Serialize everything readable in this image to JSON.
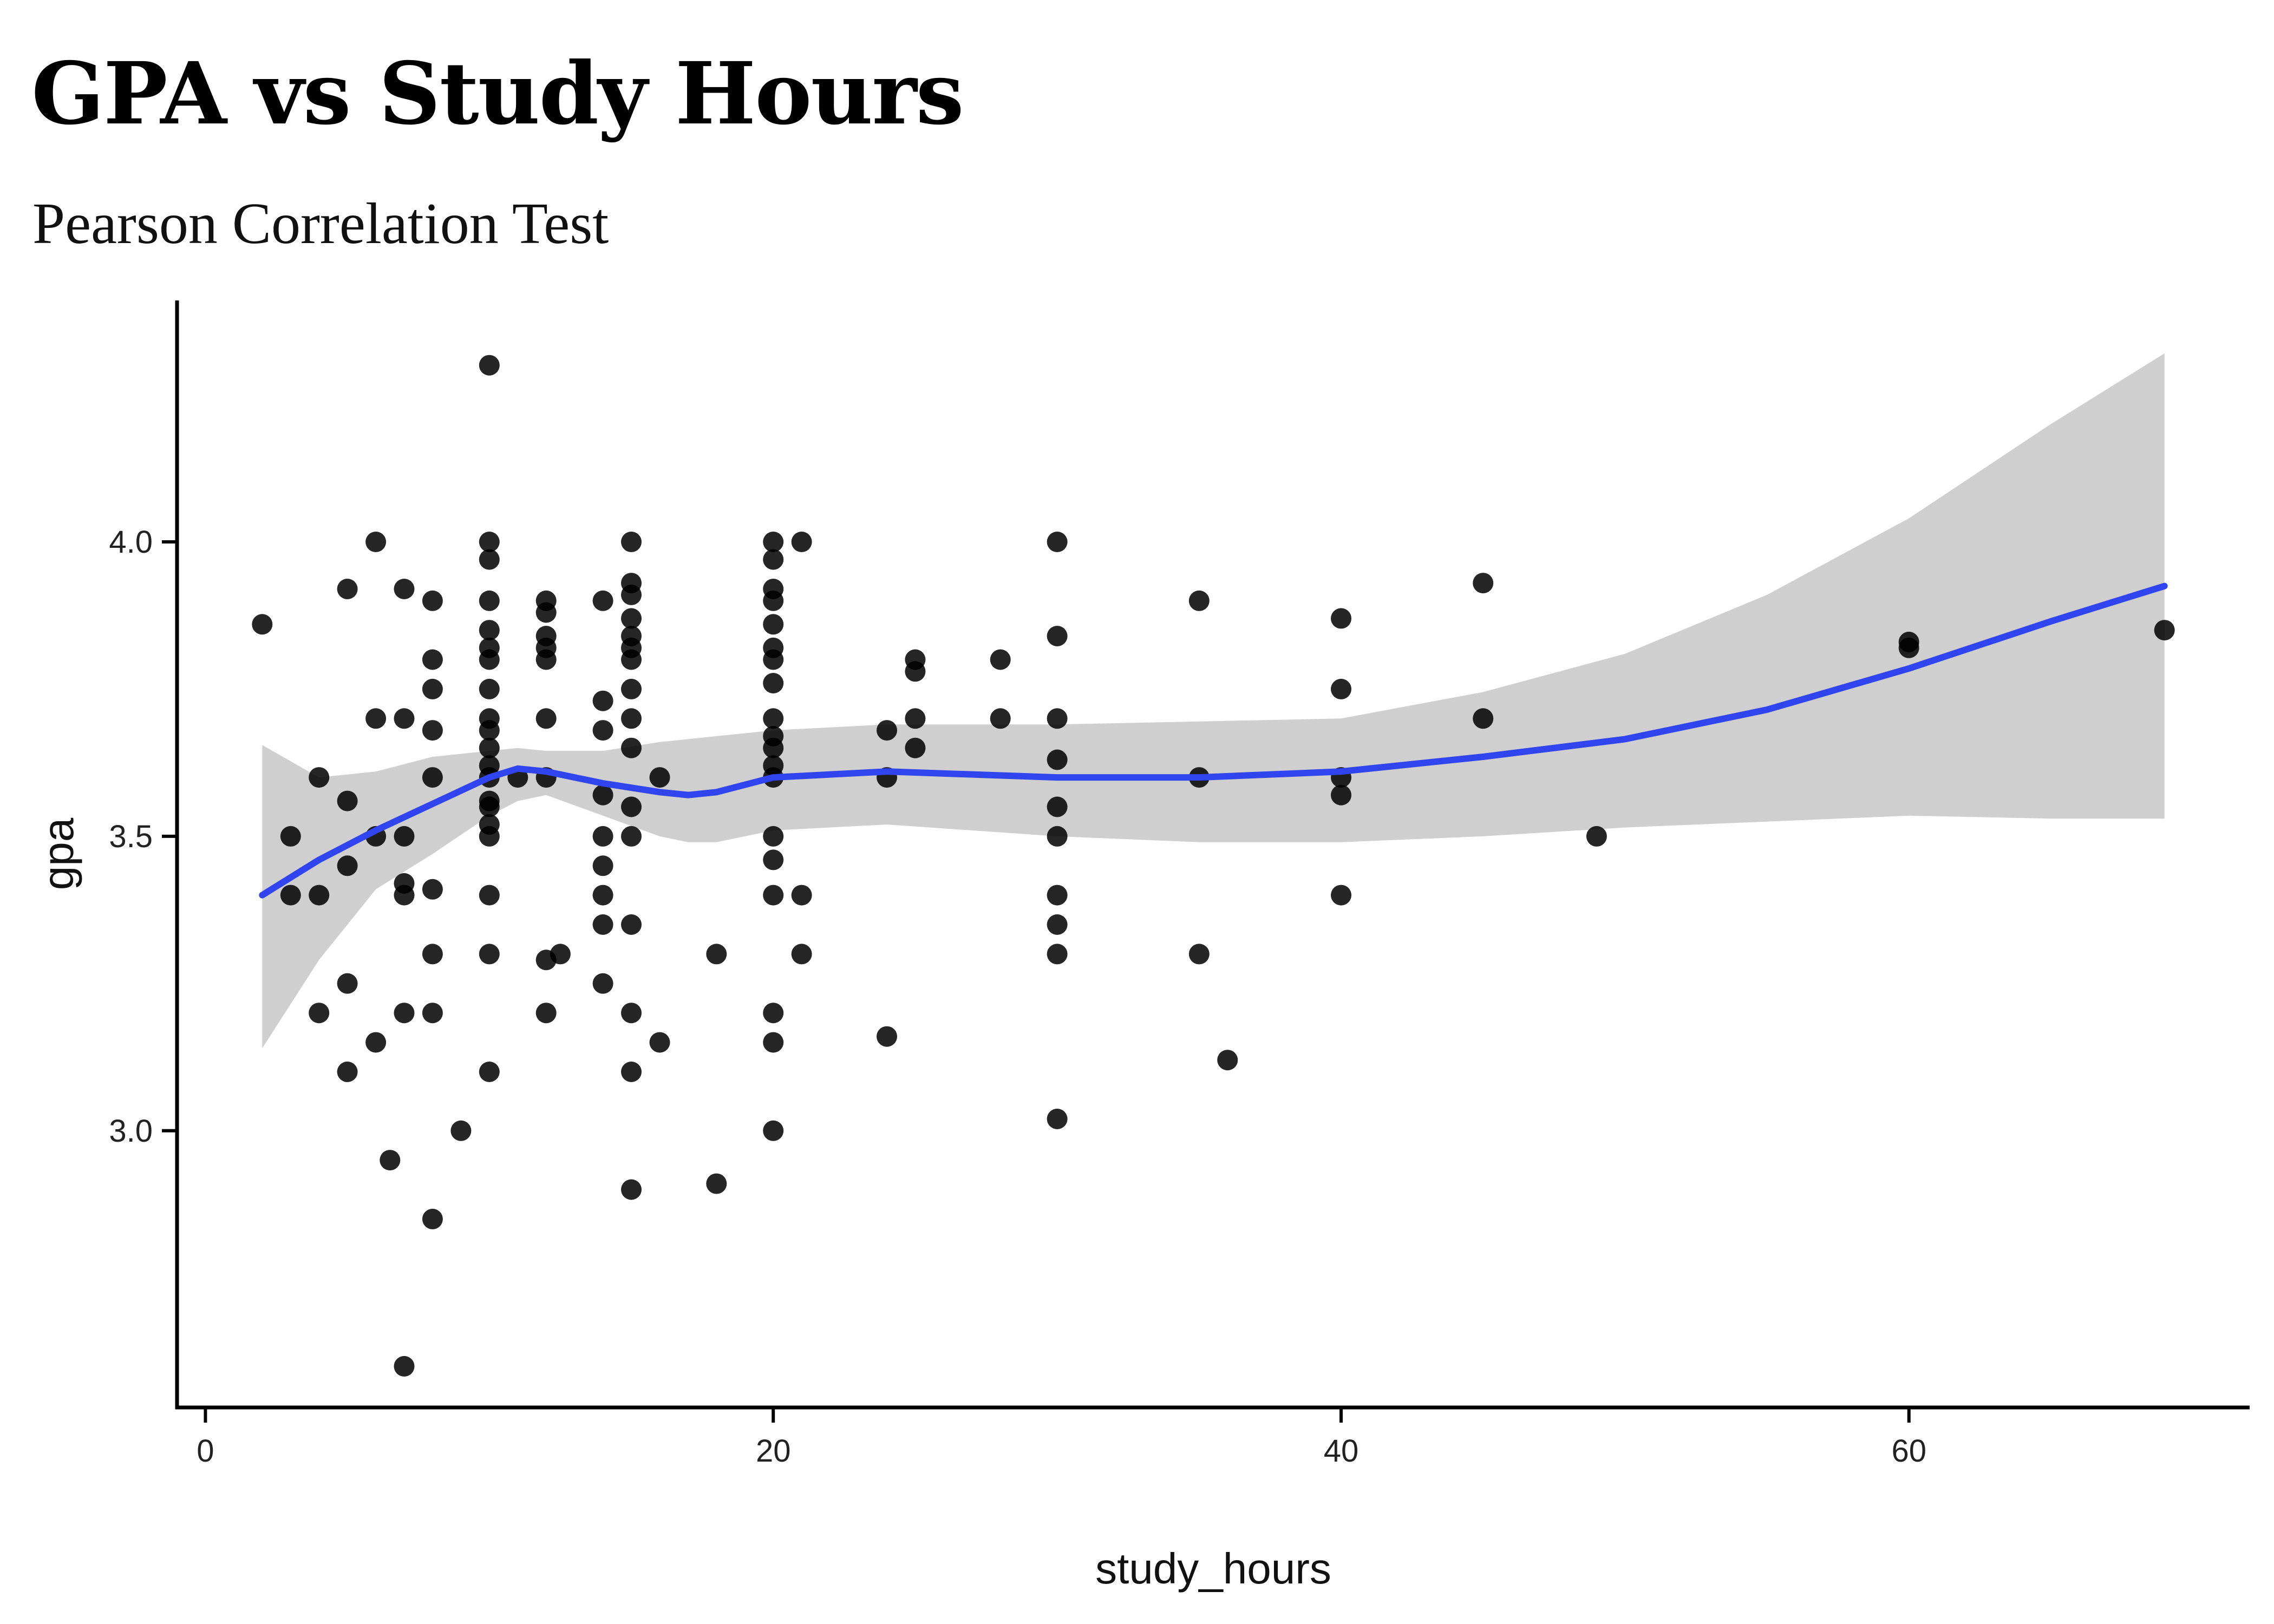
{
  "chart_data": {
    "type": "scatter",
    "title": "GPA vs Study Hours",
    "subtitle": "Pearson Correlation Test",
    "xlabel": "study_hours",
    "ylabel": "gpa",
    "xlim": [
      -1,
      72
    ],
    "ylim": [
      2.53,
      4.41
    ],
    "x_ticks": [
      0,
      20,
      40,
      60
    ],
    "x_tick_labels": [
      "0",
      "20",
      "40",
      "60"
    ],
    "y_ticks": [
      3.0,
      3.5,
      4.0
    ],
    "y_tick_labels": [
      "3.0",
      "3.5",
      "4.0"
    ],
    "grid": false,
    "legend": "none",
    "colors": {
      "points": "#000000",
      "smooth_line": "#3045f0",
      "confidence_band": "#cfcfcf",
      "axis": "#000000"
    },
    "points": [
      [
        2,
        3.86
      ],
      [
        3,
        3.5
      ],
      [
        3,
        3.4
      ],
      [
        4,
        3.6
      ],
      [
        4,
        3.4
      ],
      [
        4,
        3.2
      ],
      [
        5,
        3.92
      ],
      [
        5,
        3.56
      ],
      [
        5,
        3.45
      ],
      [
        5,
        3.25
      ],
      [
        5,
        3.1
      ],
      [
        6,
        4.0
      ],
      [
        6,
        3.7
      ],
      [
        6,
        3.5
      ],
      [
        6,
        3.15
      ],
      [
        6.5,
        2.95
      ],
      [
        7,
        3.92
      ],
      [
        7,
        3.7
      ],
      [
        7,
        3.5
      ],
      [
        7,
        3.42
      ],
      [
        7,
        3.4
      ],
      [
        7,
        3.2
      ],
      [
        7,
        2.6
      ],
      [
        8,
        3.9
      ],
      [
        8,
        3.8
      ],
      [
        8,
        3.75
      ],
      [
        8,
        3.68
      ],
      [
        8,
        3.6
      ],
      [
        8,
        3.41
      ],
      [
        8,
        3.3
      ],
      [
        8,
        3.2
      ],
      [
        8,
        2.85
      ],
      [
        9,
        3.0
      ],
      [
        10,
        4.3
      ],
      [
        10,
        4.0
      ],
      [
        10,
        3.97
      ],
      [
        10,
        3.9
      ],
      [
        10,
        3.85
      ],
      [
        10,
        3.82
      ],
      [
        10,
        3.8
      ],
      [
        10,
        3.75
      ],
      [
        10,
        3.7
      ],
      [
        10,
        3.68
      ],
      [
        10,
        3.65
      ],
      [
        10,
        3.62
      ],
      [
        10,
        3.6
      ],
      [
        10,
        3.56
      ],
      [
        10,
        3.55
      ],
      [
        10,
        3.52
      ],
      [
        10,
        3.5
      ],
      [
        10,
        3.4
      ],
      [
        10,
        3.3
      ],
      [
        10,
        3.1
      ],
      [
        11,
        3.6
      ],
      [
        12,
        3.9
      ],
      [
        12,
        3.88
      ],
      [
        12,
        3.84
      ],
      [
        12,
        3.82
      ],
      [
        12,
        3.8
      ],
      [
        12,
        3.7
      ],
      [
        12,
        3.6
      ],
      [
        12,
        3.29
      ],
      [
        12,
        3.2
      ],
      [
        12.5,
        3.3
      ],
      [
        14,
        3.9
      ],
      [
        14,
        3.73
      ],
      [
        14,
        3.68
      ],
      [
        14,
        3.57
      ],
      [
        14,
        3.5
      ],
      [
        14,
        3.45
      ],
      [
        14,
        3.4
      ],
      [
        14,
        3.35
      ],
      [
        14,
        3.25
      ],
      [
        15,
        4.0
      ],
      [
        15,
        3.93
      ],
      [
        15,
        3.91
      ],
      [
        15,
        3.87
      ],
      [
        15,
        3.84
      ],
      [
        15,
        3.82
      ],
      [
        15,
        3.8
      ],
      [
        15,
        3.75
      ],
      [
        15,
        3.7
      ],
      [
        15,
        3.65
      ],
      [
        15,
        3.55
      ],
      [
        15,
        3.5
      ],
      [
        15,
        3.35
      ],
      [
        15,
        3.2
      ],
      [
        15,
        3.1
      ],
      [
        15,
        2.9
      ],
      [
        16,
        3.6
      ],
      [
        16,
        3.15
      ],
      [
        18,
        3.3
      ],
      [
        18,
        2.91
      ],
      [
        20,
        4.0
      ],
      [
        20,
        3.97
      ],
      [
        20,
        3.92
      ],
      [
        20,
        3.9
      ],
      [
        20,
        3.86
      ],
      [
        20,
        3.82
      ],
      [
        20,
        3.8
      ],
      [
        20,
        3.76
      ],
      [
        20,
        3.7
      ],
      [
        20,
        3.67
      ],
      [
        20,
        3.65
      ],
      [
        20,
        3.62
      ],
      [
        20,
        3.6
      ],
      [
        20,
        3.5
      ],
      [
        20,
        3.46
      ],
      [
        20,
        3.4
      ],
      [
        20,
        3.2
      ],
      [
        20,
        3.15
      ],
      [
        20,
        3.0
      ],
      [
        21,
        4.0
      ],
      [
        21,
        3.4
      ],
      [
        21,
        3.3
      ],
      [
        24,
        3.68
      ],
      [
        24,
        3.6
      ],
      [
        24,
        3.16
      ],
      [
        25,
        3.8
      ],
      [
        25,
        3.78
      ],
      [
        25,
        3.7
      ],
      [
        25,
        3.65
      ],
      [
        28,
        3.8
      ],
      [
        28,
        3.7
      ],
      [
        30,
        4.0
      ],
      [
        30,
        3.84
      ],
      [
        30,
        3.7
      ],
      [
        30,
        3.63
      ],
      [
        30,
        3.55
      ],
      [
        30,
        3.5
      ],
      [
        30,
        3.4
      ],
      [
        30,
        3.35
      ],
      [
        30,
        3.3
      ],
      [
        30,
        3.02
      ],
      [
        35,
        3.9
      ],
      [
        35,
        3.6
      ],
      [
        35,
        3.3
      ],
      [
        36,
        3.12
      ],
      [
        40,
        3.87
      ],
      [
        40,
        3.75
      ],
      [
        40,
        3.6
      ],
      [
        40,
        3.57
      ],
      [
        40,
        3.4
      ],
      [
        45,
        3.93
      ],
      [
        45,
        3.7
      ],
      [
        49,
        3.5
      ],
      [
        60,
        3.83
      ],
      [
        60,
        3.82
      ],
      [
        69,
        3.85
      ]
    ],
    "smooth_fit": {
      "method": "loess",
      "x": [
        2,
        4,
        6,
        8,
        10,
        11,
        12,
        14,
        16,
        17,
        18,
        20,
        24,
        30,
        35,
        40,
        45,
        50,
        55,
        60,
        65,
        69
      ],
      "y": [
        3.4,
        3.46,
        3.51,
        3.555,
        3.6,
        3.615,
        3.61,
        3.59,
        3.575,
        3.57,
        3.575,
        3.6,
        3.61,
        3.6,
        3.6,
        3.61,
        3.635,
        3.665,
        3.715,
        3.785,
        3.865,
        3.925
      ],
      "ci_upper": [
        3.655,
        3.6,
        3.61,
        3.635,
        3.645,
        3.65,
        3.645,
        3.645,
        3.66,
        3.665,
        3.67,
        3.68,
        3.69,
        3.69,
        3.695,
        3.7,
        3.745,
        3.81,
        3.91,
        4.04,
        4.2,
        4.32
      ],
      "ci_lower": [
        3.14,
        3.29,
        3.41,
        3.47,
        3.535,
        3.56,
        3.57,
        3.535,
        3.5,
        3.49,
        3.49,
        3.51,
        3.52,
        3.5,
        3.49,
        3.49,
        3.5,
        3.515,
        3.525,
        3.535,
        3.53,
        3.53
      ]
    }
  }
}
